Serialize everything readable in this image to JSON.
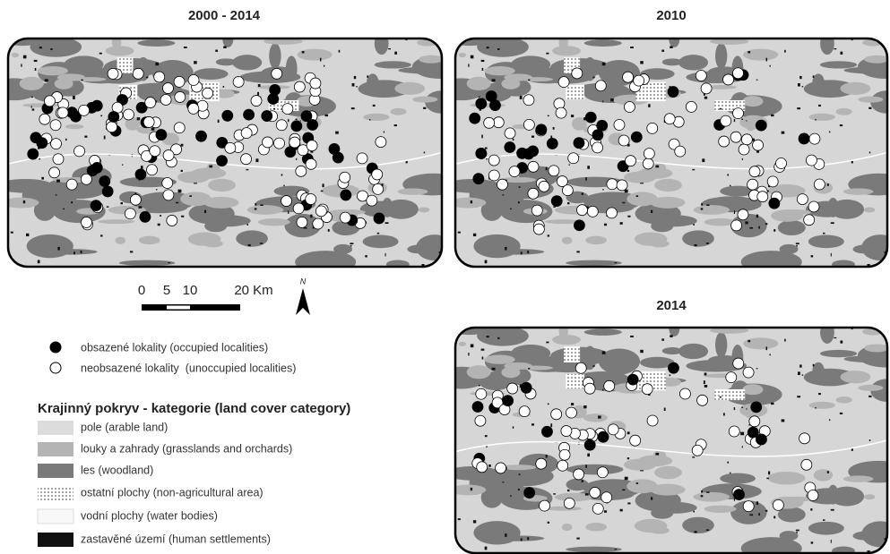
{
  "titles": [
    "2000 - 2014",
    "2010",
    "2014"
  ],
  "scale_bar": {
    "labels": [
      "0",
      "5",
      "10",
      "20 Km"
    ],
    "north": "N"
  },
  "legend": {
    "points": [
      "obsazené lokality (occupied localities)",
      "neobsazené lokality  (unoccupied localities)"
    ],
    "land_cover_title": "Krajinný pokryv - kategorie (land cover category)",
    "land_cover": [
      "pole (arable land)",
      "louky a zahrady (grasslands and orchards)",
      "les (woodland)",
      "ostatní plochy (non-agricultural area)",
      "vodní plochy (water bodies)",
      "zastavěné území (human settlements)"
    ]
  }
}
